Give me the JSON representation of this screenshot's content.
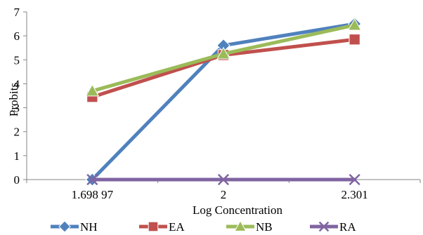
{
  "chart_data": {
    "type": "line",
    "title": "",
    "xlabel": "Log Concentration",
    "ylabel": "Probits",
    "categories": [
      "1.698 97",
      "2",
      "2.301"
    ],
    "ylim": [
      0,
      7
    ],
    "yticks": [
      0,
      1,
      2,
      3,
      4,
      5,
      6,
      7
    ],
    "grid": false,
    "legend_position": "bottom",
    "series": [
      {
        "name": "NH",
        "values": [
          0,
          5.6,
          6.5
        ],
        "color": "#4f81bd",
        "marker": "diamond"
      },
      {
        "name": "EA",
        "values": [
          3.45,
          5.2,
          5.85
        ],
        "color": "#c0504d",
        "marker": "square"
      },
      {
        "name": "NB",
        "values": [
          3.7,
          5.25,
          6.45
        ],
        "color": "#9bbb59",
        "marker": "triangle"
      },
      {
        "name": "RA",
        "values": [
          0,
          0,
          0
        ],
        "color": "#8064a2",
        "marker": "x"
      }
    ]
  }
}
